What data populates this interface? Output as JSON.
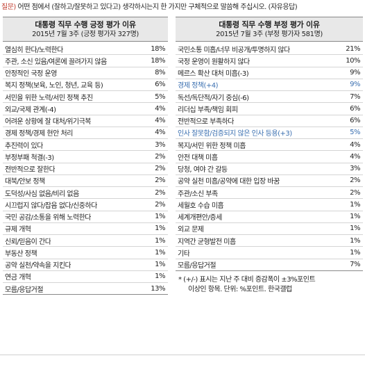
{
  "question": {
    "label": "질문)",
    "text": "어떤 점에서 (잘하고/잘못하고 있다고) 생각하시는지 한 가지만 구체적으로 말씀해 주십시오. (자유응답)"
  },
  "positive": {
    "title": "대통령 직무 수행 긍정 평가 이유",
    "subtitle": "2015년 7월 3주 (긍정 평가자 327명)",
    "rows": [
      {
        "label": "열심히 한다/노력한다",
        "value": "18%"
      },
      {
        "label": "주관, 소신 있음/여론에 끌려가지 않음",
        "value": "18%"
      },
      {
        "label": "안정적인 국정 운영",
        "value": "8%"
      },
      {
        "label": "복지 정책(보육, 노인, 청년, 교육 등)",
        "value": "6%"
      },
      {
        "label": "서민을 위한 노력/서민 정책 추진",
        "value": "5%"
      },
      {
        "label": "외교/국제 관계(-4)",
        "value": "4%"
      },
      {
        "label": "어려운 상황에 잘 대처/위기극복",
        "value": "4%"
      },
      {
        "label": "경제 정책/경제 현안 처리",
        "value": "4%"
      },
      {
        "label": "추진력이 있다",
        "value": "3%"
      },
      {
        "label": "부정부패 척결(-3)",
        "value": "2%"
      },
      {
        "label": "전반적으로 잘한다",
        "value": "2%"
      },
      {
        "label": "대북/안보 정책",
        "value": "2%"
      },
      {
        "label": "도덕성/사심 없음/비리 없음",
        "value": "2%"
      },
      {
        "label": "시끄럽지 않다/잡음 없다/신중하다",
        "value": "2%"
      },
      {
        "label": "국민 공감/소통을 위해 노력한다",
        "value": "1%"
      },
      {
        "label": "규제 개혁",
        "value": "1%"
      },
      {
        "label": "신뢰/믿음이 간다",
        "value": "1%"
      },
      {
        "label": "부동산 정책",
        "value": "1%"
      },
      {
        "label": "공약 실천/약속을 지킨다",
        "value": "1%"
      },
      {
        "label": "연금 개혁",
        "value": "1%"
      },
      {
        "label": "모름/응답거절",
        "value": "13%"
      }
    ]
  },
  "negative": {
    "title": "대통령 직무 수행 부정 평가 이유",
    "subtitle": "2015년 7월 3주 (부정 평가자 581명)",
    "rows": [
      {
        "label": "국민소통 미흡/너무 비공개/투명하지 않다",
        "value": "21%"
      },
      {
        "label": "국정 운영이 원활하지 않다",
        "value": "10%"
      },
      {
        "label": "메르스 확산 대처 미흡(-3)",
        "value": "9%"
      },
      {
        "label": "경제 정책(+4)",
        "value": "9%",
        "hl": true
      },
      {
        "label": "독선/독단적/자기 중심(-6)",
        "value": "7%"
      },
      {
        "label": "리더십 부족/책임 회피",
        "value": "6%"
      },
      {
        "label": "전반적으로 부족하다",
        "value": "6%"
      },
      {
        "label": "인사 잘못함/검증되지 않은 인사 등용(+3)",
        "value": "5%",
        "hl": true
      },
      {
        "label": "복지/서민 위한 정책 미흡",
        "value": "4%"
      },
      {
        "label": "안전 대책 미흡",
        "value": "4%"
      },
      {
        "label": "당청, 여야 간 갈등",
        "value": "3%"
      },
      {
        "label": "공약 실천 미흡/공약에 대한 입장 바꿈",
        "value": "2%"
      },
      {
        "label": "주관/소신 부족",
        "value": "2%"
      },
      {
        "label": "세월호 수습 미흡",
        "value": "1%"
      },
      {
        "label": "세계개편안/증세",
        "value": "1%"
      },
      {
        "label": "외교 문제",
        "value": "1%"
      },
      {
        "label": "지역간 균형발전 미흡",
        "value": "1%"
      },
      {
        "label": "기타",
        "value": "1%"
      },
      {
        "label": "모름/응답거절",
        "value": "7%"
      }
    ],
    "footnote_line1": "* (+/-) 표시는 지난 주 대비 증감폭이 ±3%포인트",
    "footnote_line2": "이상인 항목. 단위: %포인트. 한국갤럽"
  },
  "colors": {
    "highlight": "#3a6fb0",
    "question_label": "#c0392b",
    "header_bg": "#e8e8e8"
  }
}
